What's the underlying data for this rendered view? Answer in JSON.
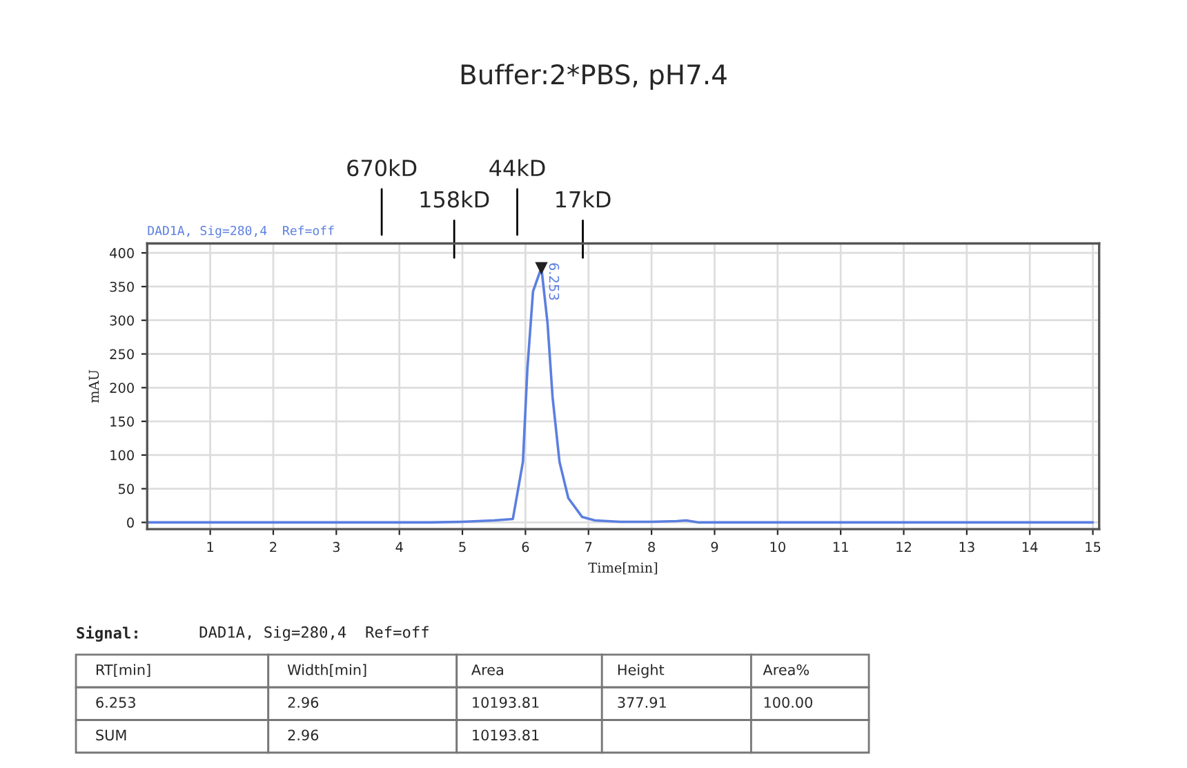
{
  "chart_data": [
    {
      "type": "line",
      "title": "Buffer:2*PBS, pH7.4",
      "xlabel": "Time[min]",
      "ylabel": "mAU",
      "series": [
        {
          "color": "#5b7fe0",
          "x": [
            0,
            1,
            2,
            3,
            4,
            4.5,
            5.0,
            5.5,
            5.8,
            5.96,
            6.03,
            6.12,
            6.253,
            6.35,
            6.43,
            6.54,
            6.68,
            6.9,
            7.1,
            7.5,
            8.0,
            8.4,
            8.55,
            8.75,
            9,
            10,
            12,
            15
          ],
          "values": [
            0,
            0,
            0,
            0,
            0,
            0,
            1,
            3,
            5,
            90,
            227,
            343,
            377.91,
            296,
            186,
            90,
            36,
            8,
            3,
            1,
            1,
            2,
            3,
            0,
            0,
            0,
            0,
            0
          ]
        }
      ],
      "xlim": [
        0,
        15.1
      ],
      "ylim": [
        -10,
        414
      ],
      "xticks": [
        1,
        2,
        3,
        4,
        5,
        6,
        7,
        8,
        9,
        10,
        11,
        12,
        13,
        14,
        15
      ],
      "yticks": [
        0,
        50,
        100,
        150,
        200,
        250,
        300,
        350,
        400
      ],
      "grid": true,
      "marker": "none",
      "line_style": "solid",
      "ref_lines": [
        {
          "axis": "x",
          "value": 3.72,
          "label": "670kD",
          "color": "#000000"
        },
        {
          "axis": "x",
          "value": 4.87,
          "label": "158kD",
          "color": "#000000"
        },
        {
          "axis": "x",
          "value": 5.87,
          "label": "44kD",
          "color": "#000000"
        },
        {
          "axis": "x",
          "value": 6.91,
          "label": "17kD",
          "color": "#000000"
        }
      ],
      "annotations": [
        "DAD1A, Sig=280,4  Ref=off",
        {
          "text": "6.253",
          "x": 6.253,
          "y": 377.91
        }
      ]
    },
    {
      "type": "other",
      "annotations": [
        "Signal:",
        "DAD1A, Sig=280,4  Ref=off",
        "RT[min]",
        "Width[min]",
        "Area",
        "Height",
        "Area%",
        "6.253",
        "2.96",
        "10193.81",
        "377.91",
        "100.00",
        "SUM",
        "2.96",
        "10193.81",
        null,
        null
      ]
    }
  ]
}
